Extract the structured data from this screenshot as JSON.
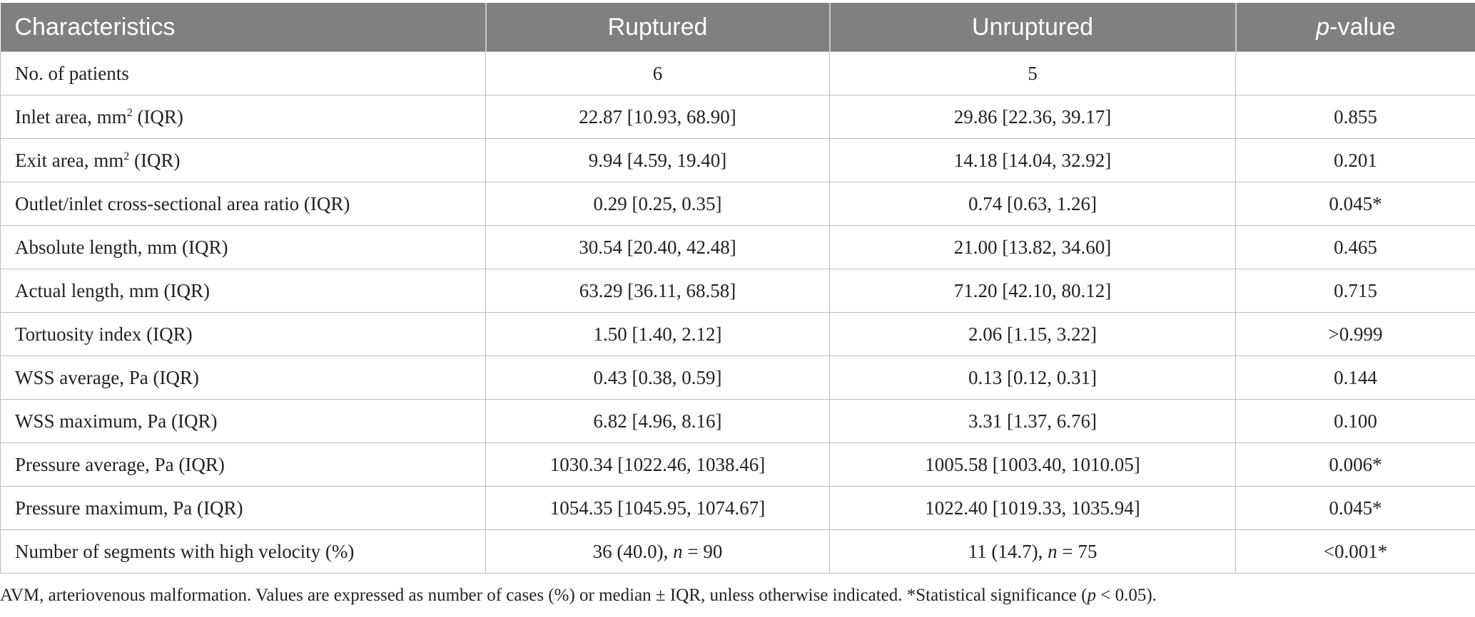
{
  "table": {
    "headers": {
      "characteristics": "Characteristics",
      "ruptured": "Ruptured",
      "unruptured": "Unruptured",
      "p_italic": "p",
      "p_rest": "-value"
    },
    "rows": [
      {
        "label": "No. of patients",
        "ruptured": "6",
        "unruptured": "5",
        "p": ""
      },
      {
        "label_pre": "Inlet area, mm",
        "label_sup": "2",
        "label_post": " (IQR)",
        "ruptured": "22.87 [10.93, 68.90]",
        "unruptured": "29.86 [22.36, 39.17]",
        "p": "0.855"
      },
      {
        "label_pre": "Exit area, mm",
        "label_sup": "2",
        "label_post": " (IQR)",
        "ruptured": "9.94 [4.59, 19.40]",
        "unruptured": "14.18 [14.04, 32.92]",
        "p": "0.201"
      },
      {
        "label": "Outlet/inlet cross-sectional area ratio (IQR)",
        "ruptured": "0.29 [0.25, 0.35]",
        "unruptured": "0.74 [0.63, 1.26]",
        "p": "0.045*"
      },
      {
        "label": "Absolute length, mm (IQR)",
        "ruptured": "30.54 [20.40, 42.48]",
        "unruptured": "21.00 [13.82, 34.60]",
        "p": "0.465"
      },
      {
        "label": "Actual length, mm (IQR)",
        "ruptured": "63.29 [36.11, 68.58]",
        "unruptured": "71.20 [42.10, 80.12]",
        "p": "0.715"
      },
      {
        "label": "Tortuosity index (IQR)",
        "ruptured": "1.50 [1.40, 2.12]",
        "unruptured": "2.06 [1.15, 3.22]",
        "p": ">0.999"
      },
      {
        "label": "WSS average, Pa (IQR)",
        "ruptured": "0.43 [0.38, 0.59]",
        "unruptured": "0.13 [0.12, 0.31]",
        "p": "0.144"
      },
      {
        "label": "WSS maximum, Pa (IQR)",
        "ruptured": "6.82 [4.96, 8.16]",
        "unruptured": "3.31 [1.37, 6.76]",
        "p": "0.100"
      },
      {
        "label": "Pressure average, Pa (IQR)",
        "ruptured": "1030.34 [1022.46, 1038.46]",
        "unruptured": "1005.58 [1003.40, 1010.05]",
        "p": "0.006*"
      },
      {
        "label": "Pressure maximum, Pa (IQR)",
        "ruptured": "1054.35 [1045.95, 1074.67]",
        "unruptured": "1022.40 [1019.33, 1035.94]",
        "p": "0.045*"
      },
      {
        "label": "Number of segments with high velocity (%)",
        "ruptured_pre": "36 (40.0), ",
        "ruptured_n": "n",
        "ruptured_post": " = 90",
        "unruptured_pre": "11 (14.7), ",
        "unruptured_n": "n",
        "unruptured_post": " = 75",
        "p": "<0.001*"
      }
    ]
  },
  "footnote": {
    "text_a": "AVM, arteriovenous malformation. Values are expressed as number of cases (%) or median ± IQR, unless otherwise indicated. *Statistical significance (",
    "p_italic": "p",
    "text_b": " < 0.05)."
  }
}
